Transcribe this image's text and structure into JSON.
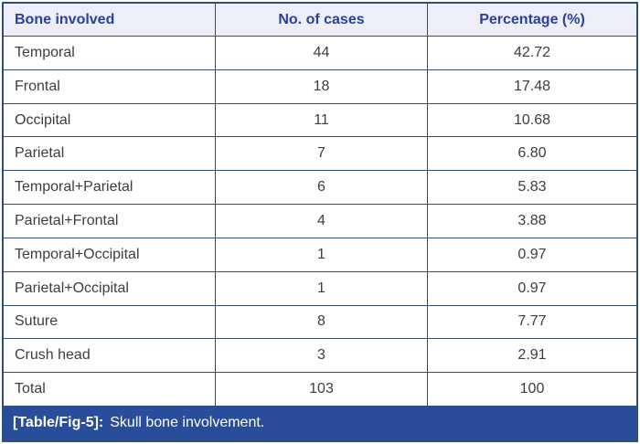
{
  "table": {
    "columns": [
      {
        "label": "Bone involved"
      },
      {
        "label": "No. of cases"
      },
      {
        "label": "Percentage (%)"
      }
    ],
    "rows": [
      {
        "bone": "Temporal",
        "cases": "44",
        "percentage": "42.72"
      },
      {
        "bone": "Frontal",
        "cases": "18",
        "percentage": "17.48"
      },
      {
        "bone": "Occipital",
        "cases": "11",
        "percentage": "10.68"
      },
      {
        "bone": "Parietal",
        "cases": "7",
        "percentage": "6.80"
      },
      {
        "bone": "Temporal+Parietal",
        "cases": "6",
        "percentage": "5.83"
      },
      {
        "bone": "Parietal+Frontal",
        "cases": "4",
        "percentage": "3.88"
      },
      {
        "bone": "Temporal+Occipital",
        "cases": "1",
        "percentage": "0.97"
      },
      {
        "bone": "Parietal+Occipital",
        "cases": "1",
        "percentage": "0.97"
      },
      {
        "bone": "Suture",
        "cases": "8",
        "percentage": "7.77"
      },
      {
        "bone": "Crush head",
        "cases": "3",
        "percentage": "2.91"
      },
      {
        "bone": "Total",
        "cases": "103",
        "percentage": "100"
      }
    ]
  },
  "caption": {
    "label": "[Table/Fig-5]:",
    "text": "Skull bone involvement."
  },
  "colors": {
    "header_bg": "#eceef8",
    "header_text": "#2c3f9c",
    "grid_border": "#2f4d7f",
    "body_text": "#3d3d3d",
    "caption_bg": "#2a4d9b",
    "caption_text": "#ffffff"
  },
  "chart_data": {
    "type": "table",
    "title": "[Table/Fig-5]: Skull bone involvement.",
    "columns": [
      "Bone involved",
      "No. of cases",
      "Percentage (%)"
    ],
    "rows": [
      [
        "Temporal",
        44,
        42.72
      ],
      [
        "Frontal",
        18,
        17.48
      ],
      [
        "Occipital",
        11,
        10.68
      ],
      [
        "Parietal",
        7,
        6.8
      ],
      [
        "Temporal+Parietal",
        6,
        5.83
      ],
      [
        "Parietal+Frontal",
        4,
        3.88
      ],
      [
        "Temporal+Occipital",
        1,
        0.97
      ],
      [
        "Parietal+Occipital",
        1,
        0.97
      ],
      [
        "Suture",
        8,
        7.77
      ],
      [
        "Crush head",
        3,
        2.91
      ],
      [
        "Total",
        103,
        100
      ]
    ],
    "total_cases": 103
  }
}
